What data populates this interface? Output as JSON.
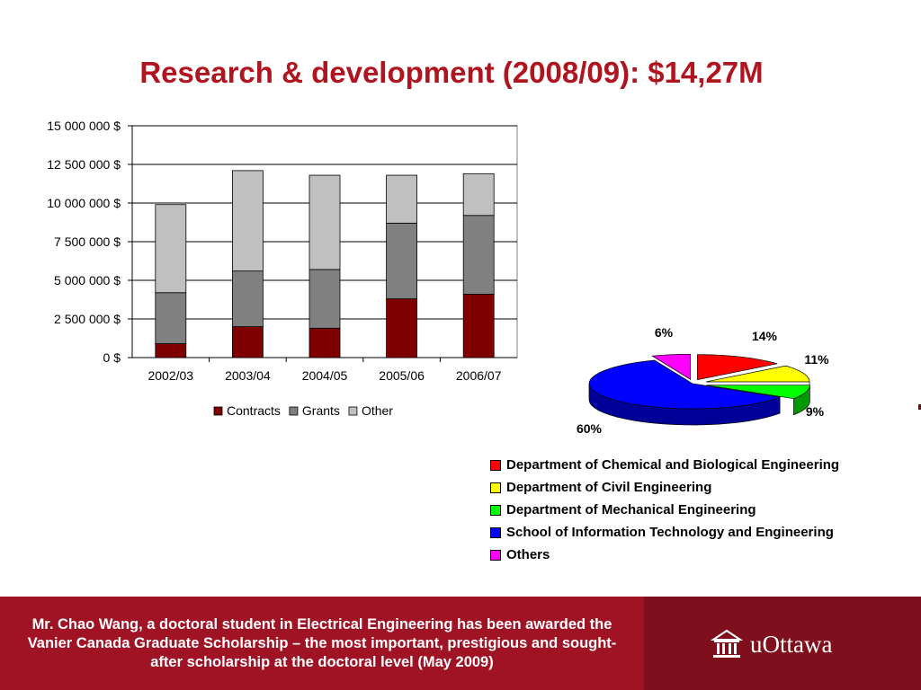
{
  "slide": {
    "title": "Research & development (2008/09): $14,27M"
  },
  "colors": {
    "title": "#b0141e",
    "contracts": "#800000",
    "grants": "#808080",
    "other": "#c0c0c0",
    "footer_caption_bg": "#a01324",
    "footer_bg": "#7f0f1c"
  },
  "chart_data": [
    {
      "type": "bar",
      "stacked": true,
      "categories": [
        "2002/03",
        "2003/04",
        "2004/05",
        "2005/06",
        "2006/07"
      ],
      "series": [
        {
          "name": "Contracts",
          "color": "#800000",
          "values": [
            900000,
            2000000,
            1900000,
            3800000,
            4100000
          ]
        },
        {
          "name": "Grants",
          "color": "#808080",
          "values": [
            3300000,
            3600000,
            3800000,
            4900000,
            5100000
          ]
        },
        {
          "name": "Other",
          "color": "#c0c0c0",
          "values": [
            5700000,
            6500000,
            6100000,
            3100000,
            2700000
          ]
        }
      ],
      "ylim": [
        0,
        15000000
      ],
      "yticks": [
        0,
        2500000,
        5000000,
        7500000,
        10000000,
        12500000,
        15000000
      ],
      "ytick_labels": [
        "0 $",
        "2 500 000 $",
        "5 000 000 $",
        "7 500 000 $",
        "10 000 000 $",
        "12 500 000 $",
        "15 000 000 $"
      ],
      "grid": true,
      "legend_position": "bottom"
    },
    {
      "type": "pie",
      "three_d": true,
      "slices": [
        {
          "name": "Department of Chemical and Biological Engineering",
          "value": 14,
          "label": "14%",
          "color": "#ff0000"
        },
        {
          "name": "Department of Civil Engineering",
          "value": 11,
          "label": "11%",
          "color": "#ffff00"
        },
        {
          "name": "Department of Mechanical Engineering",
          "value": 9,
          "label": "9%",
          "color": "#00ff00"
        },
        {
          "name": "School of Information Technology and Engineering",
          "value": 60,
          "label": "60%",
          "color": "#0000ff"
        },
        {
          "name": "Others",
          "value": 6,
          "label": "6%",
          "color": "#ff00ff"
        }
      ],
      "legend_position": "bottom"
    }
  ],
  "footer": {
    "caption": "Mr. Chao Wang, a doctoral student in Electrical Engineering has been awarded the Vanier Canada Graduate Scholarship – the most important, prestigious and sought-after scholarship at the doctoral level (May 2009)",
    "brand": "uOttawa",
    "brand_icon": "university-building-icon"
  }
}
